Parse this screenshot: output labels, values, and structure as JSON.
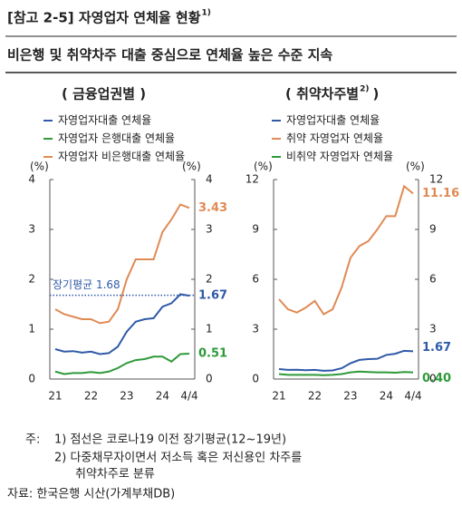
{
  "header": {
    "title": "[참고 2-5] 자영업자 연체율 현황",
    "title_note": "1)",
    "subtitle": "비은행 및 취약차주 대출 중심으로 연체율 높은 수준 지속"
  },
  "chart_data": [
    {
      "type": "line",
      "title": "( 금융업권별 )",
      "categories": [
        "21",
        null,
        null,
        null,
        "22",
        null,
        null,
        null,
        "23",
        null,
        null,
        null,
        "24",
        null,
        null,
        "4/4"
      ],
      "series": [
        {
          "name": "자영업자대출 연체율",
          "color": "#2f5aa8",
          "values": [
            0.6,
            0.55,
            0.56,
            0.53,
            0.55,
            0.5,
            0.52,
            0.65,
            0.95,
            1.15,
            1.2,
            1.22,
            1.45,
            1.52,
            1.7,
            1.67
          ]
        },
        {
          "name": "자영업자 은행대출 연체율",
          "color": "#2e9a3a",
          "values": [
            0.15,
            0.1,
            0.12,
            0.12,
            0.14,
            0.12,
            0.15,
            0.22,
            0.32,
            0.38,
            0.4,
            0.45,
            0.45,
            0.35,
            0.5,
            0.51
          ]
        },
        {
          "name": "자영업자 비은행대출 연체율",
          "color": "#e08a55",
          "values": [
            1.4,
            1.3,
            1.25,
            1.2,
            1.2,
            1.12,
            1.15,
            1.4,
            2.0,
            2.4,
            2.4,
            2.4,
            2.95,
            3.2,
            3.5,
            3.43
          ]
        }
      ],
      "ylim": [
        0,
        4
      ],
      "yticks": [
        0,
        1,
        2,
        3,
        4
      ],
      "y2lim": [
        0,
        4
      ],
      "y2ticks": [
        0,
        1,
        2,
        3,
        4
      ],
      "y_unit": "(%)",
      "y2_unit": "(%)",
      "grid": false,
      "reference": {
        "label": "장기평균 1.68",
        "value": 1.68,
        "color": "#2f5aa8"
      }
    },
    {
      "type": "line",
      "title": "( 취약차주별",
      "title_note": "2)",
      "title_end": ")",
      "categories": [
        "21",
        null,
        null,
        null,
        "22",
        null,
        null,
        null,
        "23",
        null,
        null,
        null,
        "24",
        null,
        null,
        "4/4"
      ],
      "series": [
        {
          "name": "자영업자대출 연체율",
          "color": "#2f5aa8",
          "values": [
            0.6,
            0.55,
            0.56,
            0.53,
            0.55,
            0.5,
            0.52,
            0.65,
            0.95,
            1.15,
            1.2,
            1.22,
            1.45,
            1.52,
            1.7,
            1.67
          ]
        },
        {
          "name": "취약 자영업자 연체율",
          "color": "#e08a55",
          "values": [
            4.8,
            4.2,
            4.0,
            4.3,
            4.7,
            3.9,
            4.2,
            5.5,
            7.3,
            8.0,
            8.3,
            9.0,
            9.8,
            9.8,
            11.6,
            11.16
          ]
        },
        {
          "name": "비취약 자영업자 연체율",
          "color": "#2e9a3a",
          "values": [
            0.3,
            0.25,
            0.25,
            0.25,
            0.25,
            0.23,
            0.25,
            0.3,
            0.4,
            0.45,
            0.42,
            0.4,
            0.4,
            0.38,
            0.42,
            0.4
          ],
          "value_labels": [
            null,
            null,
            null,
            null,
            null,
            null,
            null,
            null,
            null,
            null,
            null,
            null,
            null,
            null,
            null,
            "0.40"
          ]
        }
      ],
      "ylim": [
        0,
        12
      ],
      "yticks": [
        0,
        3,
        6,
        9,
        12
      ],
      "y2lim": [
        0,
        12
      ],
      "y2ticks": [
        0,
        3,
        6,
        9,
        12
      ],
      "y_unit": "(%)",
      "y2_unit": "(%)",
      "grid": false
    }
  ],
  "notes": {
    "label": "주:",
    "items": [
      "1) 점선은 코로나19 이전 장기평균(12~19년)",
      "2) 다중채무자이면서 저소득 혹은 저신용인 차주를",
      "취약차주로 분류"
    ]
  },
  "source": "자료: 한국은행 시산(가계부채DB)"
}
